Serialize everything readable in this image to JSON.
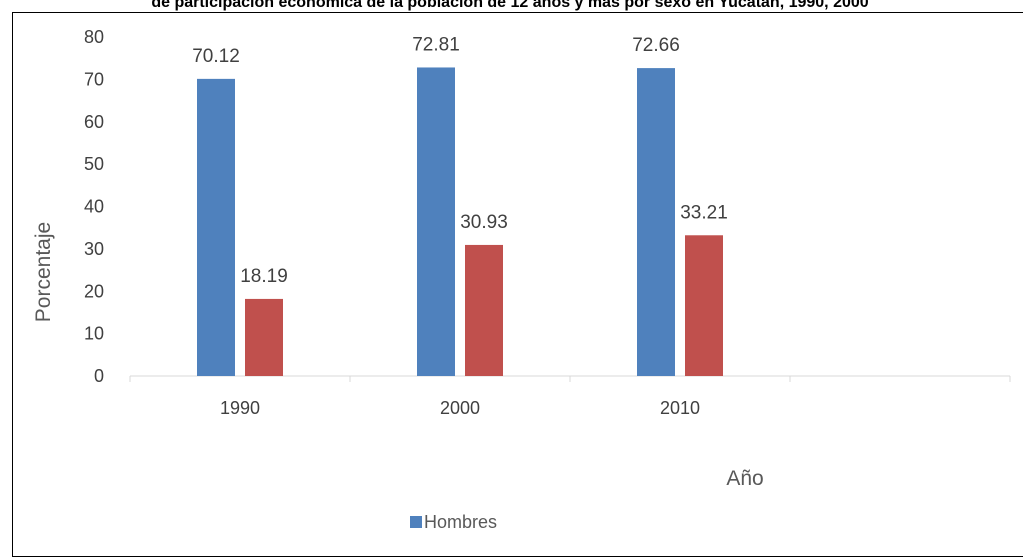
{
  "chart_data": {
    "type": "bar",
    "title": "de participación económica de la población de 12 años y más por sexo en Yucatán, 1990, 2000",
    "categories": [
      "1990",
      "2000",
      "2010",
      ""
    ],
    "series": [
      {
        "name": "Hombres",
        "values": [
          70.12,
          72.81,
          72.66,
          null
        ],
        "color": "#4f81bd"
      },
      {
        "name": "",
        "values": [
          18.19,
          30.93,
          33.21,
          null
        ],
        "color": "#c0504d"
      }
    ],
    "data_labels": [
      [
        "70.12",
        "72.81",
        "72.66"
      ],
      [
        "18.19",
        "30.93",
        "33.21"
      ]
    ],
    "xlabel": "Año",
    "ylabel": "Porcentaje",
    "ylim": [
      0,
      80
    ],
    "yticks": [
      0,
      10,
      20,
      30,
      40,
      50,
      60,
      70,
      80
    ],
    "grid": false,
    "legend": {
      "position": "bottom",
      "entries": [
        "Hombres"
      ]
    }
  }
}
